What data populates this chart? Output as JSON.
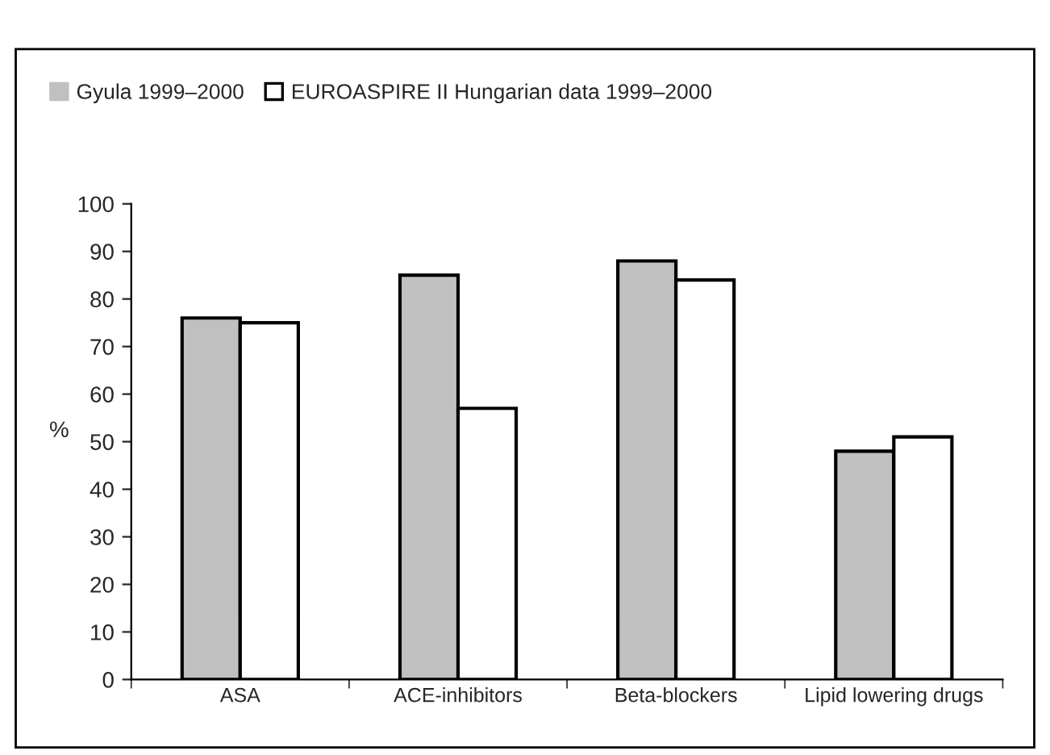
{
  "chart_data": {
    "type": "bar",
    "ylabel": "%",
    "categories": [
      "ASA",
      "ACE-inhibitors",
      "Beta-blockers",
      "Lipid lowering drugs"
    ],
    "series": [
      {
        "name": "Gyula 1999–2000",
        "color": "#c0c0c0",
        "values": [
          76,
          85,
          88,
          48
        ]
      },
      {
        "name": "EUROASPIRE II Hungarian data 1999–2000",
        "color": "#ffffff",
        "values": [
          75,
          57,
          84,
          51
        ]
      }
    ],
    "ylim": [
      0,
      100
    ],
    "yticks": [
      0,
      10,
      20,
      30,
      40,
      50,
      60,
      70,
      80,
      90,
      100
    ],
    "grid": false,
    "legend": "top left"
  }
}
